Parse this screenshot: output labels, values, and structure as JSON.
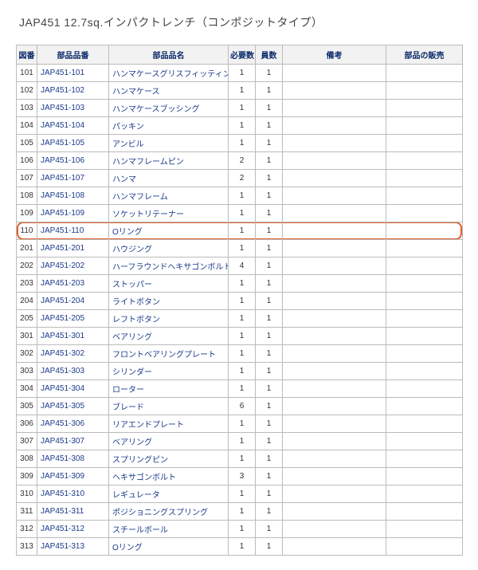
{
  "title": "JAP451  12.7sq.インパクトレンチ（コンポジットタイプ）",
  "columns": [
    "図番",
    "部品品番",
    "部品品名",
    "必要数",
    "員数",
    "備考",
    "部品の販売"
  ],
  "highlight_row": 9,
  "highlight_color": "#e06030",
  "rows": [
    [
      "101",
      "JAP451-101",
      "ハンマケースグリスフィッティング",
      "1",
      "1",
      "",
      ""
    ],
    [
      "102",
      "JAP451-102",
      "ハンマケース",
      "1",
      "1",
      "",
      ""
    ],
    [
      "103",
      "JAP451-103",
      "ハンマケースブッシング",
      "1",
      "1",
      "",
      ""
    ],
    [
      "104",
      "JAP451-104",
      "パッキン",
      "1",
      "1",
      "",
      ""
    ],
    [
      "105",
      "JAP451-105",
      "アンビル",
      "1",
      "1",
      "",
      ""
    ],
    [
      "106",
      "JAP451-106",
      "ハンマフレームピン",
      "2",
      "1",
      "",
      ""
    ],
    [
      "107",
      "JAP451-107",
      "ハンマ",
      "2",
      "1",
      "",
      ""
    ],
    [
      "108",
      "JAP451-108",
      "ハンマフレーム",
      "1",
      "1",
      "",
      ""
    ],
    [
      "109",
      "JAP451-109",
      "ソケットリテーナー",
      "1",
      "1",
      "",
      ""
    ],
    [
      "110",
      "JAP451-110",
      "Oリング",
      "1",
      "1",
      "",
      ""
    ],
    [
      "201",
      "JAP451-201",
      "ハウジング",
      "1",
      "1",
      "",
      ""
    ],
    [
      "202",
      "JAP451-202",
      "ハーフラウンドヘキサゴンボルト",
      "4",
      "1",
      "",
      ""
    ],
    [
      "203",
      "JAP451-203",
      "ストッパー",
      "1",
      "1",
      "",
      ""
    ],
    [
      "204",
      "JAP451-204",
      "ライトボタン",
      "1",
      "1",
      "",
      ""
    ],
    [
      "205",
      "JAP451-205",
      "レフトボタン",
      "1",
      "1",
      "",
      ""
    ],
    [
      "301",
      "JAP451-301",
      "ベアリング",
      "1",
      "1",
      "",
      ""
    ],
    [
      "302",
      "JAP451-302",
      "フロントベアリングプレート",
      "1",
      "1",
      "",
      ""
    ],
    [
      "303",
      "JAP451-303",
      "シリンダー",
      "1",
      "1",
      "",
      ""
    ],
    [
      "304",
      "JAP451-304",
      "ローター",
      "1",
      "1",
      "",
      ""
    ],
    [
      "305",
      "JAP451-305",
      "ブレード",
      "6",
      "1",
      "",
      ""
    ],
    [
      "306",
      "JAP451-306",
      "リアエンドプレート",
      "1",
      "1",
      "",
      ""
    ],
    [
      "307",
      "JAP451-307",
      "ベアリング",
      "1",
      "1",
      "",
      ""
    ],
    [
      "308",
      "JAP451-308",
      "スプリングピン",
      "1",
      "1",
      "",
      ""
    ],
    [
      "309",
      "JAP451-309",
      "ヘキサゴンボルト",
      "3",
      "1",
      "",
      ""
    ],
    [
      "310",
      "JAP451-310",
      "レギュレータ",
      "1",
      "1",
      "",
      ""
    ],
    [
      "311",
      "JAP451-311",
      "ポジショニングスプリング",
      "1",
      "1",
      "",
      ""
    ],
    [
      "312",
      "JAP451-312",
      "スチールボール",
      "1",
      "1",
      "",
      ""
    ],
    [
      "313",
      "JAP451-313",
      "Oリング",
      "1",
      "1",
      "",
      ""
    ]
  ]
}
